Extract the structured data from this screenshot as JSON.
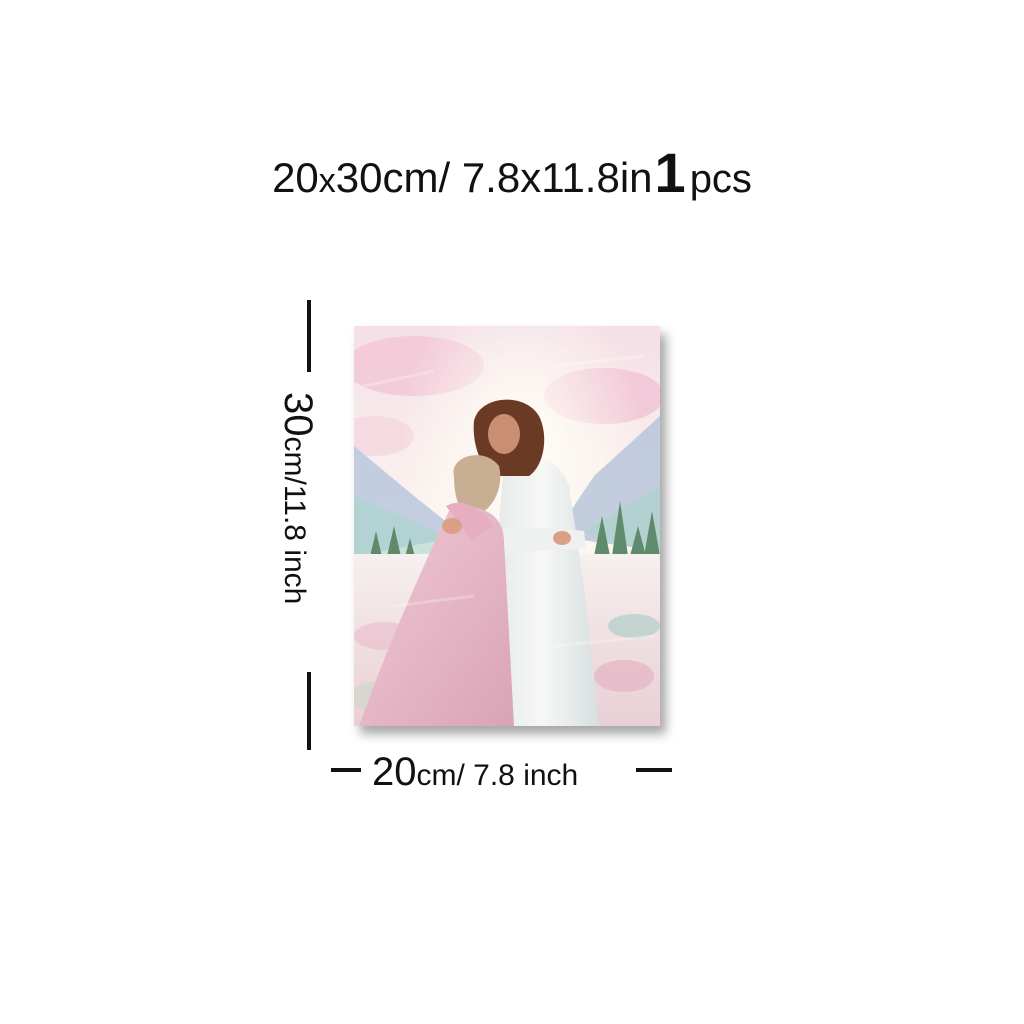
{
  "heading": {
    "part1": "20",
    "part2": "x",
    "part3": "30cm/ 7.8x11.8in",
    "quantity": "1",
    "unit": "pcs"
  },
  "dimensions": {
    "height_big": "30",
    "height_small": "cm/11.8 inch",
    "width_big": "20",
    "width_small": "cm/ 7.8 inch"
  },
  "artwork": {
    "subject": "painting-embrace",
    "colors": {
      "sky": "#f7eef0",
      "pink": "#f2c6d6",
      "robe_white": "#f2f4f3",
      "dress_pink": "#e9b8c8",
      "hair": "#6b3a24",
      "mountain": "#b9c7dd",
      "trees": "#5f8a6b",
      "field": "#f3e6e6"
    }
  }
}
